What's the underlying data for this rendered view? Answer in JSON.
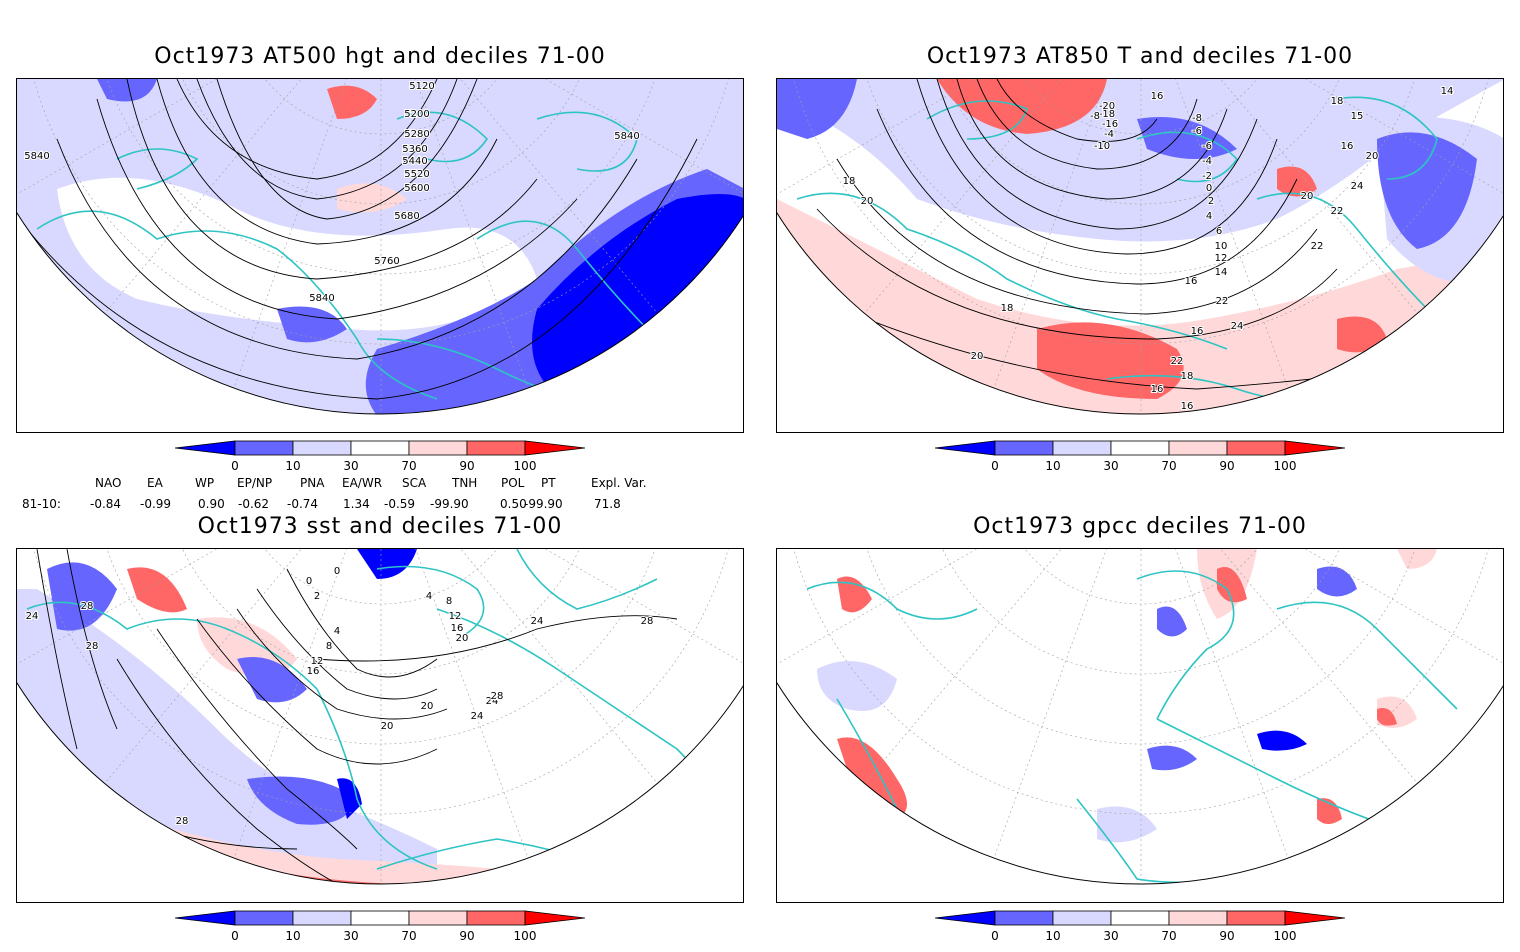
{
  "panels": [
    {
      "id": "p1",
      "title": "Oct1973 AT500 hgt and deciles 71-00",
      "contour_labels": [
        "5120",
        "5200",
        "5280",
        "5360",
        "5440",
        "5520",
        "5600",
        "5680",
        "5760",
        "5840",
        "5840",
        "5840"
      ]
    },
    {
      "id": "p2",
      "title": "Oct1973 AT850 T and deciles 71-00",
      "contour_labels": [
        "16",
        "-20",
        "-18",
        "-16",
        "-4",
        "-8",
        "-10",
        "-8",
        "-6",
        "-6",
        "-4",
        "-2",
        "0",
        "2",
        "4",
        "6",
        "10",
        "12",
        "14",
        "16",
        "18",
        "20",
        "22",
        "24",
        "16",
        "18",
        "20",
        "22",
        "18",
        "16",
        "16",
        "20",
        "22",
        "24",
        "16",
        "14",
        "15",
        "18",
        "20",
        "22"
      ]
    },
    {
      "id": "p3",
      "title": "Oct1973 sst and deciles 71-00",
      "contour_labels": [
        "24",
        "28",
        "28",
        "0",
        "0",
        "2",
        "4",
        "8",
        "12",
        "16",
        "20",
        "4",
        "8",
        "12",
        "16",
        "20",
        "20",
        "24",
        "24",
        "28",
        "24",
        "28",
        "28"
      ]
    },
    {
      "id": "p4",
      "title": "Oct1973 gpcc deciles 71-00",
      "contour_labels": []
    }
  ],
  "colorbar": {
    "ticks": [
      "0",
      "10",
      "30",
      "70",
      "90",
      "100"
    ],
    "colors": [
      "#0000ff",
      "#6666ff",
      "#d9d9ff",
      "#ffffff",
      "#ffd9d9",
      "#ff6666",
      "#ff0000"
    ]
  },
  "indices": {
    "headers": [
      "NAO",
      "EA",
      "WP",
      "EP/NP",
      "PNA",
      "EA/WR",
      "SCA",
      "TNH",
      "POL",
      "PT",
      "Expl. Var."
    ],
    "row_label": "81-10:",
    "values": [
      "-0.84",
      "-0.99",
      "0.90",
      "-0.62",
      "-0.74",
      "1.34",
      "-0.59",
      "-99.90",
      "0.50",
      "-99.90",
      "71.8"
    ]
  },
  "colors": {
    "coast": "#2ec4c4",
    "grid": "#a0a0a0",
    "contour": "#000000"
  }
}
